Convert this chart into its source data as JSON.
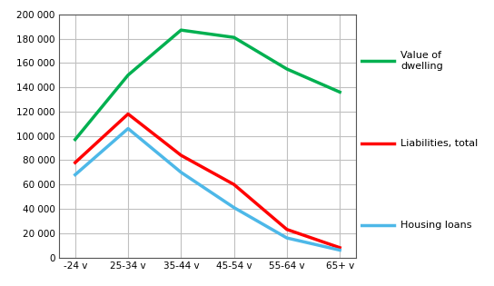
{
  "categories": [
    "-24 v",
    "25-34 v",
    "35-44 v",
    "45-54 v",
    "55-64 v",
    "65+ v"
  ],
  "value_of_dwelling": [
    97000,
    150000,
    187000,
    181000,
    155000,
    136000
  ],
  "liabilities_total": [
    78000,
    118000,
    84000,
    60000,
    23000,
    8000
  ],
  "housing_loans": [
    68000,
    106000,
    70000,
    41000,
    16000,
    6000
  ],
  "line_colors": {
    "value_of_dwelling": "#00b050",
    "liabilities_total": "#ff0000",
    "housing_loans": "#4db8e8"
  },
  "legend_labels": {
    "value_of_dwelling": "Value of\ndwelling",
    "liabilities_total": "Liabilities, total",
    "housing_loans": "Housing loans"
  },
  "ylim": [
    0,
    200000
  ],
  "ytick_step": 20000,
  "background_color": "#ffffff",
  "grid_color": "#c0c0c0",
  "line_width": 2.5
}
